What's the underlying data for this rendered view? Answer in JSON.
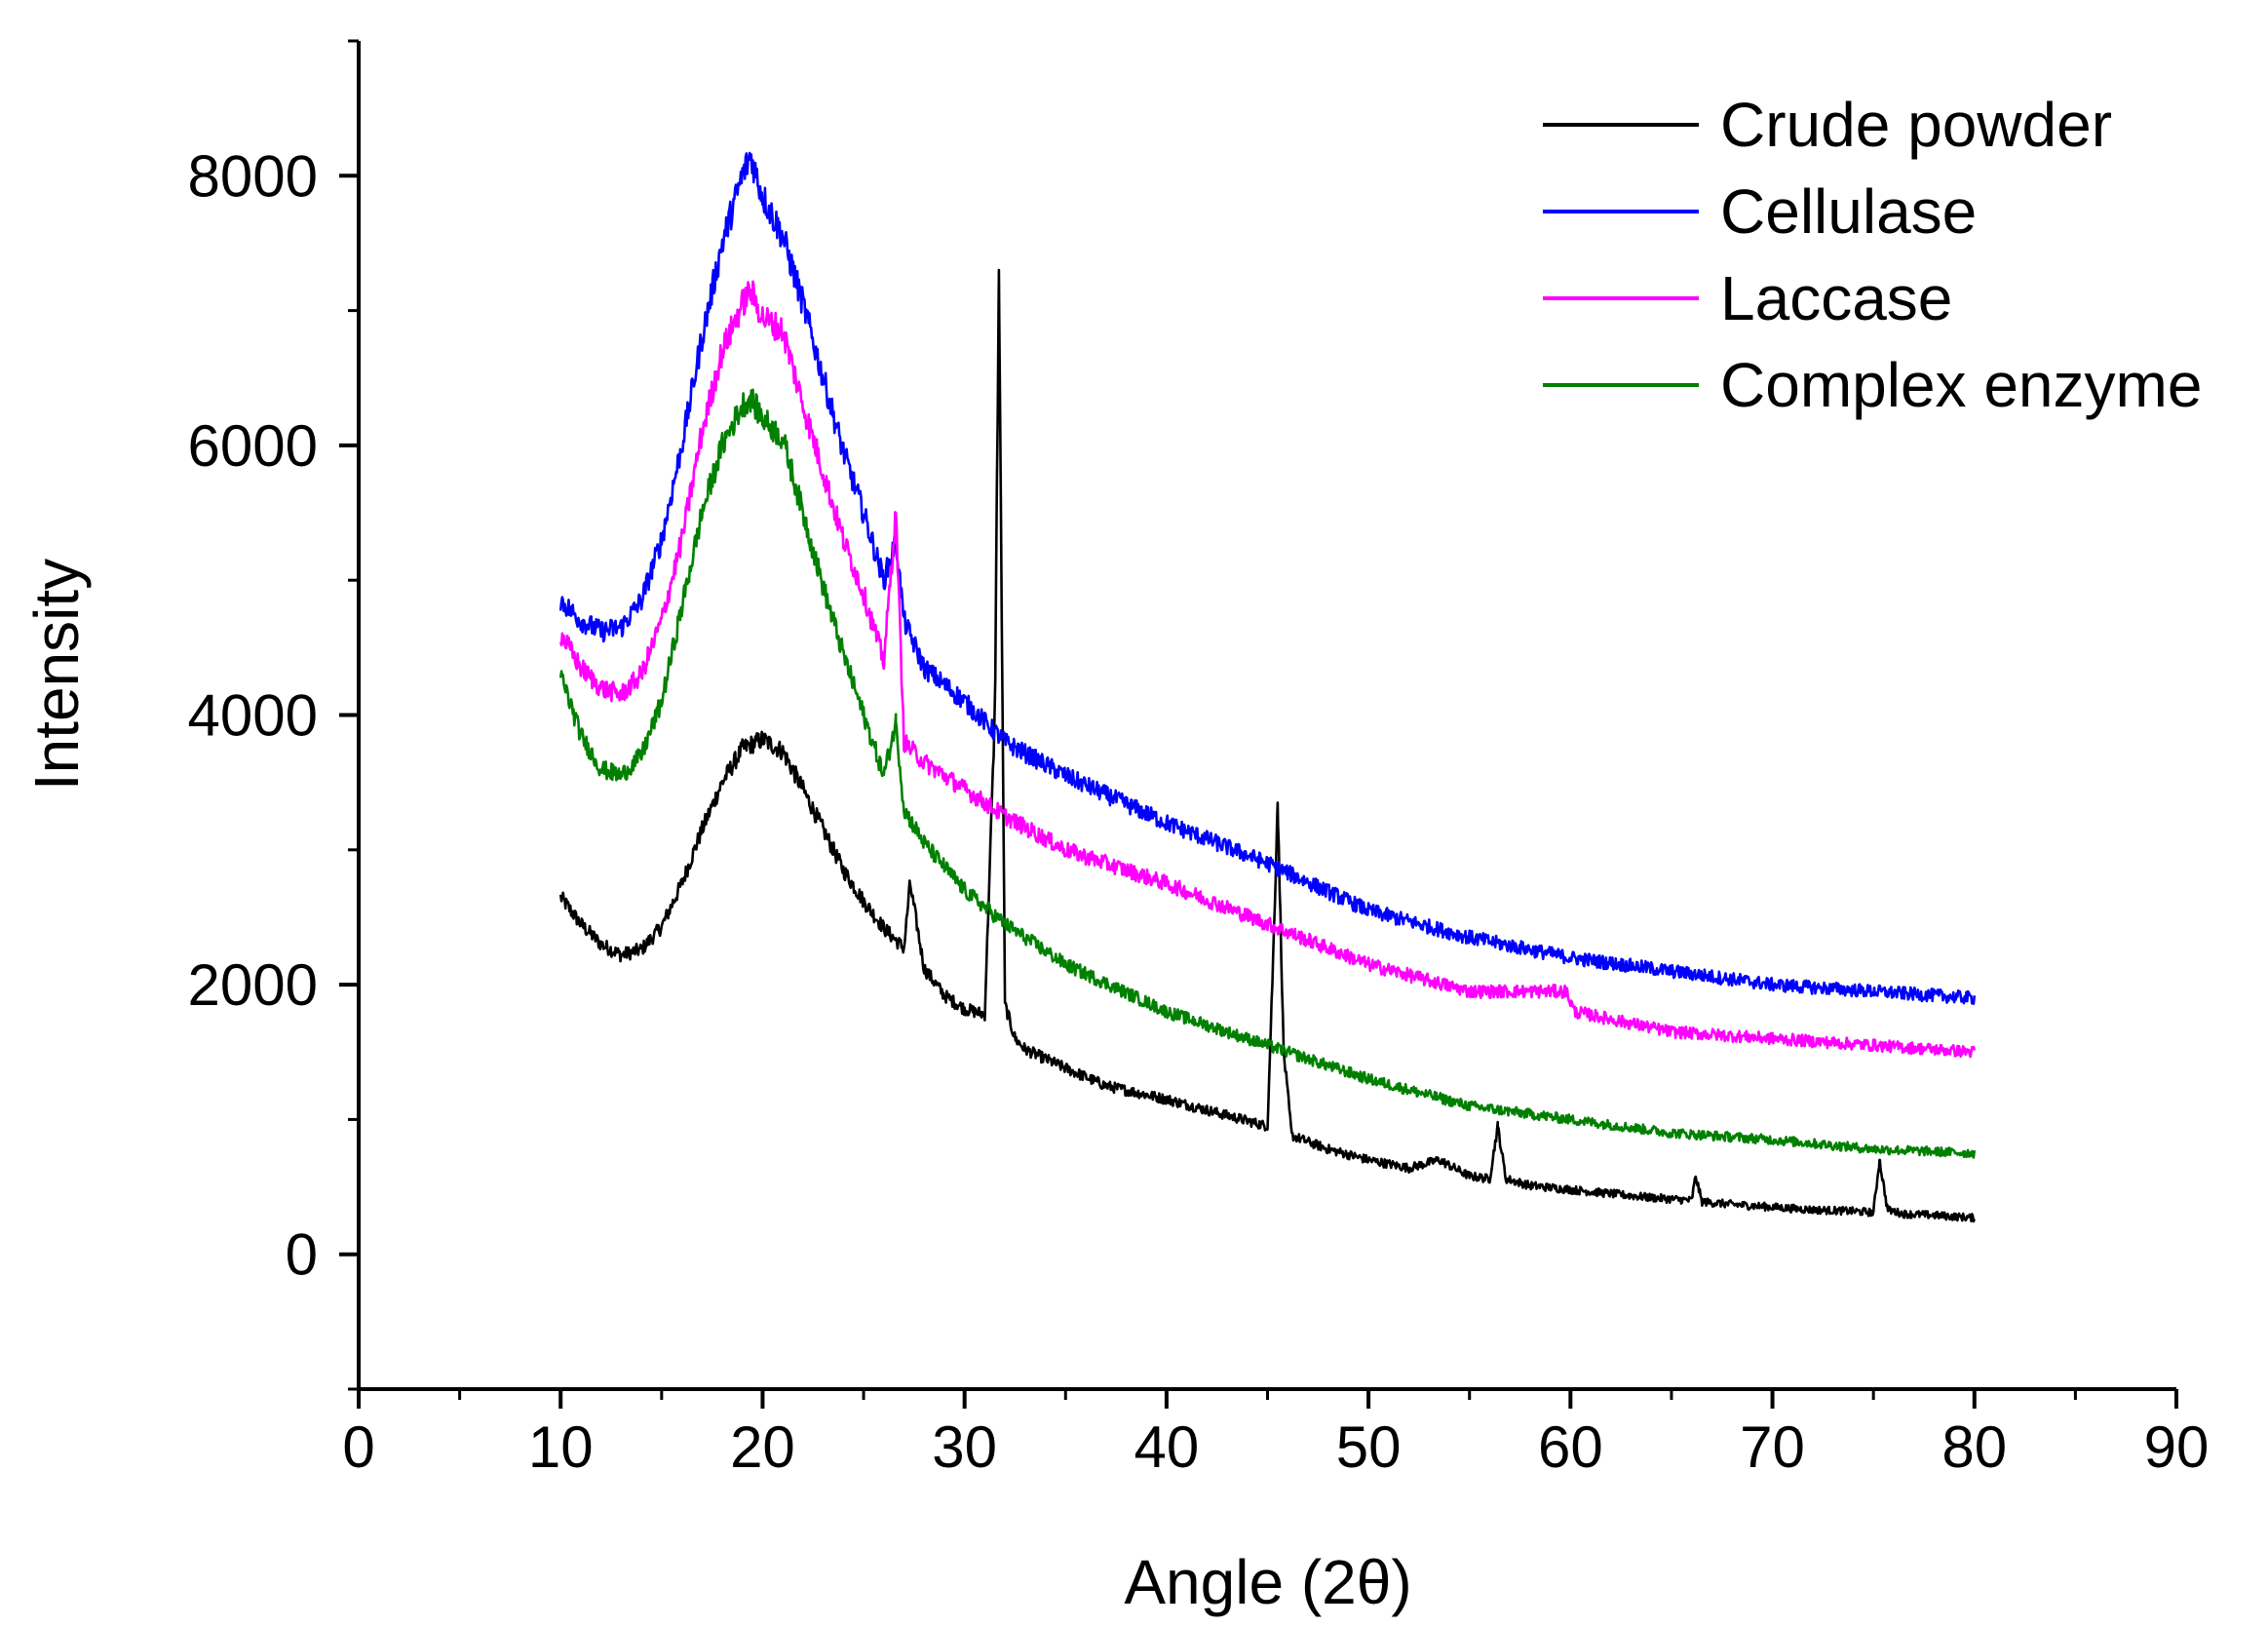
{
  "chart_data": {
    "type": "line",
    "title": "",
    "xlabel": "Angle (2θ)",
    "ylabel": "Intensity",
    "xlim": [
      0,
      90
    ],
    "ylim": [
      -1000,
      9000
    ],
    "xticks": [
      0,
      10,
      20,
      30,
      40,
      50,
      60,
      70,
      80,
      90
    ],
    "yticks": [
      0,
      2000,
      4000,
      6000,
      8000
    ],
    "grid": false,
    "legend_position": "top-right",
    "series": [
      {
        "name": "Crude powder",
        "color": "#000000",
        "x": [
          10,
          11,
          12,
          13,
          14,
          15,
          16,
          17,
          18,
          19,
          20,
          21,
          22,
          23,
          24,
          25,
          26,
          27,
          27.3,
          28,
          29,
          30,
          31,
          31.5,
          31.7,
          32,
          32.5,
          33,
          35,
          37,
          40,
          43,
          45,
          45.3,
          45.5,
          45.8,
          46.2,
          48,
          50,
          52,
          53.5,
          55,
          56,
          56.4,
          56.8,
          58,
          60,
          62,
          64,
          66,
          66.2,
          66.5,
          68,
          70,
          72,
          74,
          75,
          75.3,
          75.7,
          76.5,
          78,
          80
        ],
        "values": [
          2650,
          2450,
          2300,
          2220,
          2260,
          2430,
          2750,
          3150,
          3500,
          3750,
          3820,
          3730,
          3450,
          3150,
          2850,
          2620,
          2420,
          2270,
          2750,
          2120,
          1920,
          1820,
          1780,
          4000,
          7300,
          1850,
          1600,
          1520,
          1380,
          1250,
          1150,
          1030,
          950,
          2300,
          3350,
          1500,
          880,
          780,
          700,
          640,
          700,
          580,
          560,
          950,
          560,
          510,
          480,
          450,
          420,
          400,
          580,
          390,
          370,
          350,
          330,
          320,
          310,
          700,
          330,
          300,
          290,
          270
        ]
      },
      {
        "name": "Cellulase",
        "color": "#0000ff",
        "x": [
          10,
          11,
          12,
          13,
          14,
          15,
          16,
          17,
          18,
          19,
          19.4,
          20,
          21,
          22,
          23,
          24,
          25,
          26,
          26.6,
          27,
          28,
          30,
          32,
          35,
          40,
          45,
          50,
          55,
          60,
          65,
          70,
          75,
          80
        ],
        "values": [
          4850,
          4700,
          4620,
          4650,
          4850,
          5300,
          6000,
          6800,
          7500,
          8000,
          8150,
          7850,
          7550,
          7050,
          6500,
          5950,
          5500,
          5000,
          5300,
          4700,
          4350,
          4100,
          3800,
          3550,
          3200,
          2900,
          2550,
          2350,
          2200,
          2100,
          2000,
          1950,
          1900
        ]
      },
      {
        "name": "Laccase",
        "color": "#ff00ff",
        "x": [
          10,
          11,
          12,
          13,
          14,
          15,
          16,
          17,
          18,
          19,
          19.4,
          20,
          21,
          22,
          23,
          24,
          25,
          26,
          26.6,
          27,
          28,
          30,
          32,
          35,
          40,
          45,
          50,
          55,
          59.8,
          60.2,
          65,
          70,
          75,
          80
        ],
        "values": [
          4600,
          4350,
          4200,
          4150,
          4300,
          4700,
          5300,
          6100,
          6700,
          7050,
          7150,
          6950,
          6850,
          6300,
          5800,
          5300,
          4900,
          4400,
          5500,
          3800,
          3650,
          3450,
          3250,
          3000,
          2750,
          2450,
          2150,
          1950,
          1950,
          1800,
          1650,
          1600,
          1550,
          1500
        ]
      },
      {
        "name": "Complex enzyme",
        "color": "#008000",
        "x": [
          10,
          11,
          12,
          13,
          14,
          15,
          16,
          17,
          18,
          19,
          19.4,
          20,
          21,
          22,
          23,
          24,
          25,
          26,
          26.6,
          27,
          28,
          30,
          32,
          35,
          40,
          45,
          50,
          55,
          60,
          65,
          70,
          75,
          80
        ],
        "values": [
          4300,
          3850,
          3600,
          3550,
          3700,
          4100,
          4800,
          5500,
          6000,
          6300,
          6350,
          6200,
          6050,
          5500,
          4950,
          4450,
          4000,
          3550,
          3950,
          3300,
          3050,
          2700,
          2450,
          2150,
          1800,
          1550,
          1300,
          1100,
          1000,
          900,
          850,
          780,
          750
        ]
      }
    ]
  }
}
